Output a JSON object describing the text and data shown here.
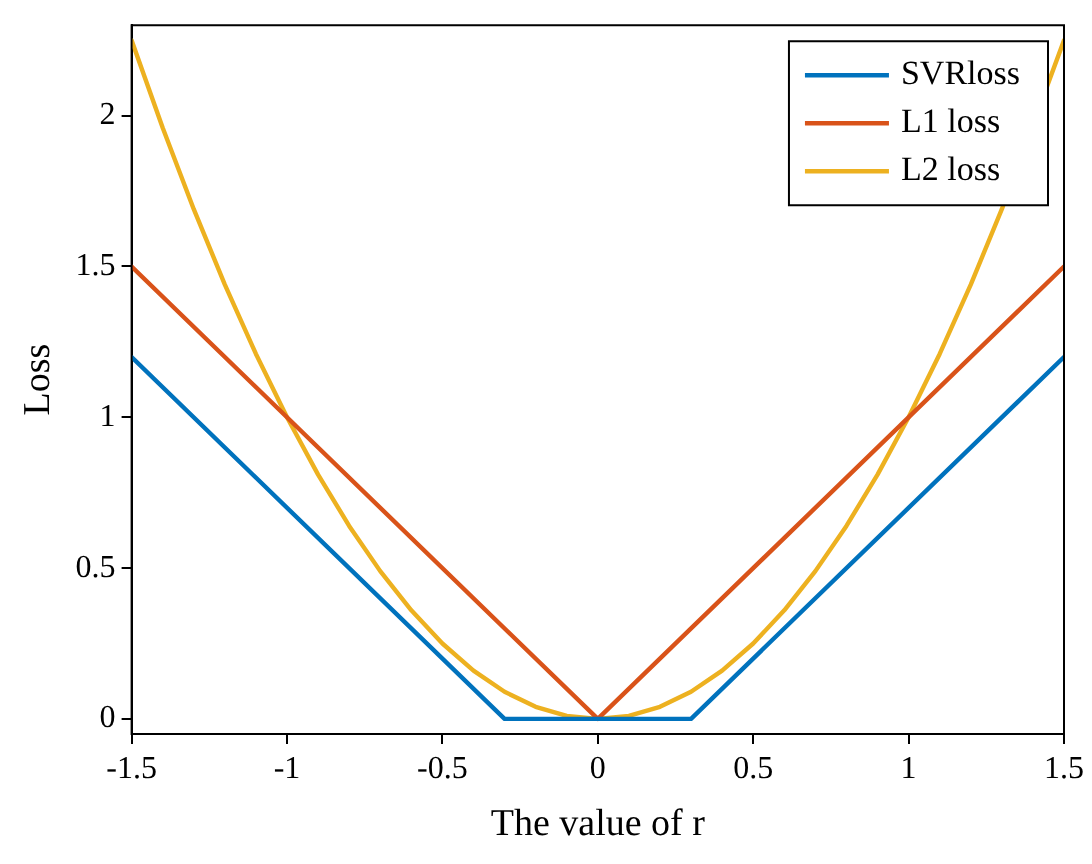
{
  "chart_data": {
    "type": "line",
    "xlabel": "The value of r",
    "ylabel": "Loss",
    "xlim": [
      -1.5,
      1.5
    ],
    "xticks": [
      -1.5,
      -1,
      -0.5,
      0,
      0.5,
      1,
      1.5
    ],
    "ylim": [
      -0.05,
      2.3
    ],
    "yticks": [
      0,
      0.5,
      1,
      1.5,
      2
    ],
    "grid": false,
    "legend": "top right",
    "marker": "none",
    "line_style": "solid",
    "series": [
      {
        "name": "SVRloss",
        "color": "#0072bd",
        "x": [
          -1.5,
          -0.3,
          0.3,
          1.5
        ],
        "values": [
          1.2,
          0,
          0,
          1.2
        ]
      },
      {
        "name": "L1 loss",
        "color": "#d95319",
        "x": [
          -1.5,
          0,
          1.5
        ],
        "values": [
          1.5,
          0,
          1.5
        ]
      },
      {
        "name": "L2 loss",
        "color": "#edb120",
        "x": [
          -1.5,
          -1.4,
          -1.3,
          -1.2,
          -1.1,
          -1,
          -0.9,
          -0.8,
          -0.7,
          -0.6,
          -0.5,
          -0.4,
          -0.3,
          -0.2,
          -0.1,
          0,
          0.1,
          0.2,
          0.3,
          0.4,
          0.5,
          0.6,
          0.7,
          0.8,
          0.9,
          1,
          1.1,
          1.2,
          1.3,
          1.4,
          1.5
        ],
        "values": [
          2.25,
          1.96,
          1.69,
          1.44,
          1.21,
          1,
          0.81,
          0.64,
          0.49,
          0.36,
          0.25,
          0.16,
          0.09,
          0.04,
          0.01,
          0,
          0.01,
          0.04,
          0.09,
          0.16,
          0.25,
          0.36,
          0.49,
          0.64,
          0.81,
          1,
          1.21,
          1.44,
          1.69,
          null,
          2.25
        ]
      }
    ]
  }
}
